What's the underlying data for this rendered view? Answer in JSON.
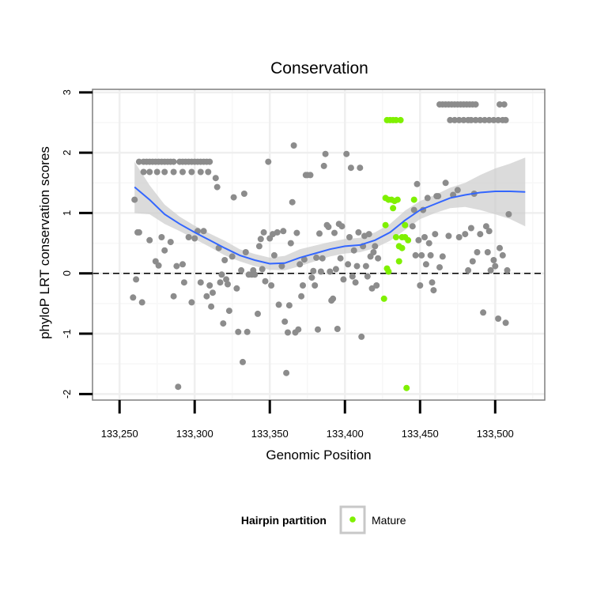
{
  "chart_data": {
    "type": "scatter",
    "title": "Conservation",
    "xlabel": "Genomic Position",
    "ylabel": "phyloP LRT conservation scores",
    "xlim": [
      133232,
      133533
    ],
    "ylim": [
      -2.1,
      3.05
    ],
    "x_ticks": [
      133250,
      133300,
      133350,
      133400,
      133450,
      133500
    ],
    "x_tick_labels": [
      "133,250",
      "133,300",
      "133,350",
      "133,400",
      "133,450",
      "133,500"
    ],
    "y_ticks": [
      -2,
      -1,
      0,
      1,
      2,
      3
    ],
    "y_tick_labels": [
      "-2",
      "-1",
      "0",
      "1",
      "2",
      "3"
    ],
    "grid": true,
    "reference_line": {
      "y": 0,
      "style": "dashed"
    },
    "legend": {
      "title": "Hairpin partition",
      "entries": [
        {
          "label": "Mature",
          "color": "#7FF000"
        }
      ],
      "placement": "bottom"
    },
    "colors": {
      "other": "#8C8C8C",
      "mature": "#7FF000",
      "smooth": "#3366FF",
      "band": "#CCCCCC"
    },
    "series": [
      {
        "name": "Other",
        "points": [
          [
            133260,
            1.22
          ],
          [
            133261,
            -0.1
          ],
          [
            133262,
            0.68
          ],
          [
            133263,
            0.68
          ],
          [
            133259,
            -0.4
          ],
          [
            133265,
            -0.48
          ],
          [
            133263,
            1.85
          ],
          [
            133266,
            1.85
          ],
          [
            133268,
            1.85
          ],
          [
            133270,
            1.85
          ],
          [
            133272,
            1.85
          ],
          [
            133274,
            1.85
          ],
          [
            133276,
            1.85
          ],
          [
            133278,
            1.85
          ],
          [
            133280,
            1.85
          ],
          [
            133282,
            1.85
          ],
          [
            133284,
            1.85
          ],
          [
            133286,
            1.85
          ],
          [
            133266,
            1.68
          ],
          [
            133270,
            1.68
          ],
          [
            133275,
            1.68
          ],
          [
            133280,
            1.68
          ],
          [
            133286,
            1.68
          ],
          [
            133270,
            0.55
          ],
          [
            133274,
            0.2
          ],
          [
            133276,
            0.13
          ],
          [
            133278,
            0.6
          ],
          [
            133280,
            0.38
          ],
          [
            133284,
            0.52
          ],
          [
            133286,
            -0.38
          ],
          [
            133288,
            0.12
          ],
          [
            133289,
            -1.88
          ],
          [
            133292,
            0.15
          ],
          [
            133293,
            -0.15
          ],
          [
            133290,
            1.85
          ],
          [
            133292,
            1.85
          ],
          [
            133294,
            1.85
          ],
          [
            133296,
            1.85
          ],
          [
            133298,
            1.85
          ],
          [
            133300,
            1.85
          ],
          [
            133302,
            1.85
          ],
          [
            133304,
            1.85
          ],
          [
            133306,
            1.85
          ],
          [
            133308,
            1.85
          ],
          [
            133310,
            1.85
          ],
          [
            133292,
            1.68
          ],
          [
            133298,
            1.68
          ],
          [
            133304,
            1.68
          ],
          [
            133309,
            1.68
          ],
          [
            133296,
            0.6
          ],
          [
            133298,
            -0.48
          ],
          [
            133300,
            0.58
          ],
          [
            133302,
            0.7
          ],
          [
            133304,
            -0.15
          ],
          [
            133306,
            0.7
          ],
          [
            133308,
            -0.38
          ],
          [
            133310,
            -0.2
          ],
          [
            133311,
            -0.55
          ],
          [
            133312,
            -0.32
          ],
          [
            133314,
            1.58
          ],
          [
            133315,
            1.43
          ],
          [
            133316,
            0.42
          ],
          [
            133317,
            -0.15
          ],
          [
            133318,
            -0.02
          ],
          [
            133319,
            -0.83
          ],
          [
            133320,
            0.22
          ],
          [
            133321,
            -0.1
          ],
          [
            133322,
            -0.18
          ],
          [
            133323,
            -0.62
          ],
          [
            133325,
            0.28
          ],
          [
            133326,
            1.26
          ],
          [
            133328,
            -0.25
          ],
          [
            133329,
            -0.97
          ],
          [
            133331,
            0.05
          ],
          [
            133332,
            -1.47
          ],
          [
            133333,
            1.32
          ],
          [
            133334,
            0.35
          ],
          [
            133335,
            -0.97
          ],
          [
            133336,
            -0.02
          ],
          [
            133338,
            -0.02
          ],
          [
            133339,
            0.05
          ],
          [
            133340,
            -0.02
          ],
          [
            133342,
            -0.67
          ],
          [
            133343,
            0.45
          ],
          [
            133344,
            0.57
          ],
          [
            133345,
            0.07
          ],
          [
            133346,
            0.68
          ],
          [
            133347,
            -0.13
          ],
          [
            133349,
            1.85
          ],
          [
            133350,
            0.58
          ],
          [
            133351,
            -0.2
          ],
          [
            133352,
            0.65
          ],
          [
            133353,
            0.3
          ],
          [
            133355,
            0.68
          ],
          [
            133356,
            -0.52
          ],
          [
            133358,
            0.12
          ],
          [
            133359,
            0.7
          ],
          [
            133360,
            -0.8
          ],
          [
            133361,
            -1.65
          ],
          [
            133362,
            -0.98
          ],
          [
            133363,
            -0.53
          ],
          [
            133364,
            0.5
          ],
          [
            133365,
            1.18
          ],
          [
            133366,
            2.12
          ],
          [
            133367,
            -0.98
          ],
          [
            133368,
            0.67
          ],
          [
            133369,
            -0.93
          ],
          [
            133370,
            0.15
          ],
          [
            133371,
            -0.38
          ],
          [
            133372,
            -0.2
          ],
          [
            133373,
            0.23
          ],
          [
            133374,
            1.63
          ],
          [
            133375,
            1.63
          ],
          [
            133377,
            1.63
          ],
          [
            133378,
            -0.07
          ],
          [
            133379,
            0.04
          ],
          [
            133380,
            -0.2
          ],
          [
            133381,
            0.26
          ],
          [
            133382,
            -0.93
          ],
          [
            133383,
            0.66
          ],
          [
            133384,
            0.03
          ],
          [
            133385,
            0.25
          ],
          [
            133386,
            1.78
          ],
          [
            133387,
            1.98
          ],
          [
            133388,
            0.8
          ],
          [
            133389,
            0.77
          ],
          [
            133390,
            0.03
          ],
          [
            133391,
            -0.45
          ],
          [
            133392,
            -0.42
          ],
          [
            133393,
            0.67
          ],
          [
            133394,
            0.07
          ],
          [
            133395,
            -0.92
          ],
          [
            133396,
            0.82
          ],
          [
            133397,
            0.25
          ],
          [
            133398,
            0.78
          ],
          [
            133399,
            -0.1
          ],
          [
            133401,
            1.98
          ],
          [
            133402,
            0.15
          ],
          [
            133403,
            0.6
          ],
          [
            133404,
            1.75
          ],
          [
            133405,
            -0.05
          ],
          [
            133406,
            0.38
          ],
          [
            133407,
            -0.15
          ],
          [
            133408,
            0.12
          ],
          [
            133409,
            0.68
          ],
          [
            133410,
            1.75
          ],
          [
            133411,
            -1.05
          ],
          [
            133412,
            0.45
          ],
          [
            133413,
            0.62
          ],
          [
            133414,
            0.12
          ],
          [
            133415,
            -0.05
          ],
          [
            133416,
            0.65
          ],
          [
            133417,
            0.28
          ],
          [
            133418,
            -0.25
          ],
          [
            133419,
            0.35
          ],
          [
            133420,
            0.45
          ],
          [
            133421,
            -0.2
          ],
          [
            133422,
            0.25
          ],
          [
            133445,
            0.78
          ],
          [
            133446,
            1.05
          ],
          [
            133447,
            0.3
          ],
          [
            133448,
            1.48
          ],
          [
            133449,
            0.55
          ],
          [
            133450,
            -0.2
          ],
          [
            133451,
            0.3
          ],
          [
            133452,
            1.05
          ],
          [
            133453,
            0.6
          ],
          [
            133454,
            0.15
          ],
          [
            133455,
            1.25
          ],
          [
            133456,
            0.5
          ],
          [
            133457,
            0.3
          ],
          [
            133458,
            -0.15
          ],
          [
            133459,
            -0.28
          ],
          [
            133460,
            0.65
          ],
          [
            133461,
            1.28
          ],
          [
            133462,
            1.28
          ],
          [
            133463,
            0.1
          ],
          [
            133465,
            0.28
          ],
          [
            133467,
            1.5
          ],
          [
            133469,
            0.62
          ],
          [
            133472,
            1.3
          ],
          [
            133475,
            1.38
          ],
          [
            133476,
            0.6
          ],
          [
            133480,
            0.65
          ],
          [
            133482,
            0.05
          ],
          [
            133484,
            0.75
          ],
          [
            133485,
            0.2
          ],
          [
            133486,
            1.32
          ],
          [
            133488,
            0.35
          ],
          [
            133490,
            0.65
          ],
          [
            133492,
            -0.65
          ],
          [
            133494,
            0.78
          ],
          [
            133495,
            0.35
          ],
          [
            133496,
            0.7
          ],
          [
            133497,
            0.05
          ],
          [
            133499,
            0.22
          ],
          [
            133500,
            0.12
          ],
          [
            133502,
            -0.75
          ],
          [
            133503,
            0.42
          ],
          [
            133505,
            0.3
          ],
          [
            133507,
            -0.82
          ],
          [
            133508,
            0.05
          ],
          [
            133509,
            0.98
          ],
          [
            133463,
            2.8
          ],
          [
            133465,
            2.8
          ],
          [
            133467,
            2.8
          ],
          [
            133469,
            2.8
          ],
          [
            133471,
            2.8
          ],
          [
            133473,
            2.8
          ],
          [
            133475,
            2.8
          ],
          [
            133477,
            2.8
          ],
          [
            133479,
            2.8
          ],
          [
            133481,
            2.8
          ],
          [
            133483,
            2.8
          ],
          [
            133485,
            2.8
          ],
          [
            133487,
            2.8
          ],
          [
            133503,
            2.8
          ],
          [
            133506,
            2.8
          ],
          [
            133470,
            2.54
          ],
          [
            133473,
            2.54
          ],
          [
            133476,
            2.54
          ],
          [
            133479,
            2.54
          ],
          [
            133482,
            2.54
          ],
          [
            133484,
            2.54
          ],
          [
            133487,
            2.54
          ],
          [
            133490,
            2.54
          ],
          [
            133493,
            2.54
          ],
          [
            133496,
            2.54
          ],
          [
            133499,
            2.54
          ],
          [
            133502,
            2.54
          ],
          [
            133505,
            2.54
          ],
          [
            133507,
            2.54
          ]
        ]
      },
      {
        "name": "Mature",
        "points": [
          [
            133428,
            2.54
          ],
          [
            133430,
            2.54
          ],
          [
            133432,
            2.54
          ],
          [
            133434,
            2.54
          ],
          [
            133437,
            2.54
          ],
          [
            133427,
            1.25
          ],
          [
            133429,
            1.22
          ],
          [
            133431,
            1.22
          ],
          [
            133433,
            1.2
          ],
          [
            133435,
            1.22
          ],
          [
            133432,
            1.08
          ],
          [
            133446,
            1.22
          ],
          [
            133427,
            0.8
          ],
          [
            133440,
            0.8
          ],
          [
            133434,
            0.6
          ],
          [
            133438,
            0.6
          ],
          [
            133440,
            0.6
          ],
          [
            133442,
            0.55
          ],
          [
            133436,
            0.45
          ],
          [
            133438,
            0.42
          ],
          [
            133436,
            0.2
          ],
          [
            133428,
            0.08
          ],
          [
            133429,
            0.03
          ],
          [
            133426,
            -0.42
          ],
          [
            133441,
            -1.9
          ]
        ]
      }
    ],
    "smooth_fit": {
      "method": "loess",
      "x": [
        133260,
        133270,
        133280,
        133290,
        133300,
        133310,
        133320,
        133330,
        133340,
        133350,
        133360,
        133370,
        133380,
        133390,
        133400,
        133410,
        133420,
        133430,
        133440,
        133450,
        133460,
        133470,
        133480,
        133490,
        133500,
        133510,
        133520
      ],
      "y": [
        1.43,
        1.22,
        0.98,
        0.82,
        0.68,
        0.55,
        0.42,
        0.3,
        0.22,
        0.16,
        0.17,
        0.26,
        0.33,
        0.4,
        0.45,
        0.47,
        0.55,
        0.68,
        0.88,
        1.05,
        1.15,
        1.25,
        1.3,
        1.34,
        1.36,
        1.36,
        1.35
      ],
      "lower": [
        1.0,
        0.98,
        0.82,
        0.7,
        0.57,
        0.44,
        0.3,
        0.2,
        0.12,
        0.06,
        0.05,
        0.12,
        0.2,
        0.28,
        0.33,
        0.35,
        0.42,
        0.54,
        0.72,
        0.9,
        1.0,
        1.08,
        1.1,
        1.05,
        0.98,
        0.9,
        0.78
      ],
      "upper": [
        1.85,
        1.46,
        1.14,
        0.94,
        0.79,
        0.66,
        0.54,
        0.4,
        0.32,
        0.26,
        0.29,
        0.4,
        0.46,
        0.52,
        0.57,
        0.59,
        0.68,
        0.82,
        1.04,
        1.2,
        1.3,
        1.42,
        1.5,
        1.63,
        1.74,
        1.82,
        1.92
      ]
    }
  }
}
